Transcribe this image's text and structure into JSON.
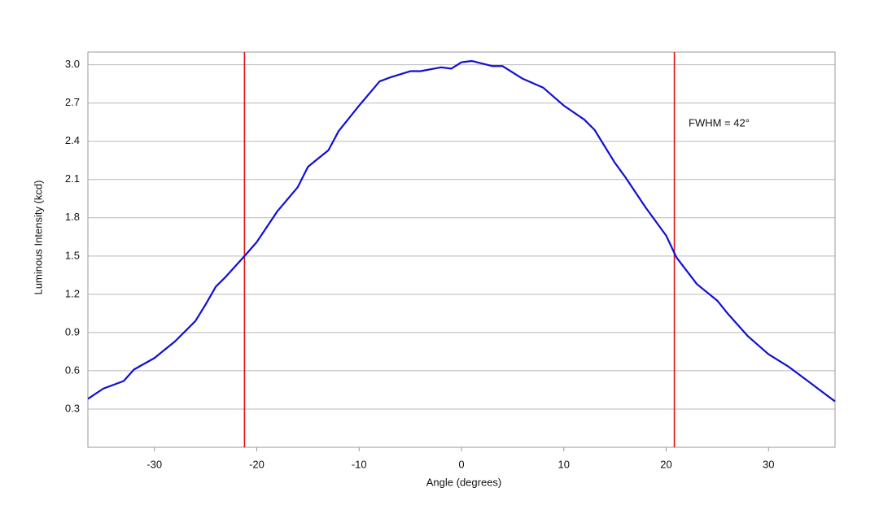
{
  "chart_data": {
    "type": "line",
    "xlabel": "Angle (degrees)",
    "ylabel": "Luminous Intensity (kcd)",
    "x": [
      -36.5,
      -35,
      -33,
      -32,
      -30,
      -28,
      -26,
      -25,
      -24,
      -23,
      -21.2,
      -20,
      -18,
      -16,
      -15,
      -13,
      -12,
      -10,
      -8,
      -7,
      -5,
      -4,
      -2,
      -1,
      0,
      1,
      3,
      4,
      6,
      8,
      10,
      12,
      13,
      15,
      16,
      18,
      20,
      21,
      23,
      25,
      26,
      28,
      30,
      32,
      34,
      35,
      36.5
    ],
    "series": [
      {
        "color": "#1010d0",
        "values": [
          0.38,
          0.46,
          0.52,
          0.61,
          0.7,
          0.83,
          0.99,
          1.12,
          1.26,
          1.34,
          1.5,
          1.61,
          1.85,
          2.04,
          2.2,
          2.33,
          2.48,
          2.68,
          2.87,
          2.9,
          2.95,
          2.95,
          2.98,
          2.97,
          3.02,
          3.03,
          2.99,
          2.99,
          2.89,
          2.82,
          2.68,
          2.57,
          2.49,
          2.23,
          2.12,
          1.88,
          1.66,
          1.49,
          1.28,
          1.15,
          1.05,
          0.87,
          0.73,
          0.63,
          0.51,
          0.45,
          0.36
        ]
      }
    ],
    "vlines": [
      -21.2,
      20.8
    ],
    "vline_color": "#e01010",
    "annotation": "FWHM = 42°",
    "xlim": [
      -36.5,
      36.5
    ],
    "xticks": [
      -30,
      -20,
      -10,
      0,
      10,
      20,
      30
    ],
    "ylim": [
      0,
      3.1
    ],
    "yticks": [
      0.3,
      0.6,
      0.9,
      1.2,
      1.5,
      1.8,
      2.1,
      2.4,
      2.7,
      {
        "value": 3,
        "label": "3.0"
      }
    ],
    "grid": true
  }
}
